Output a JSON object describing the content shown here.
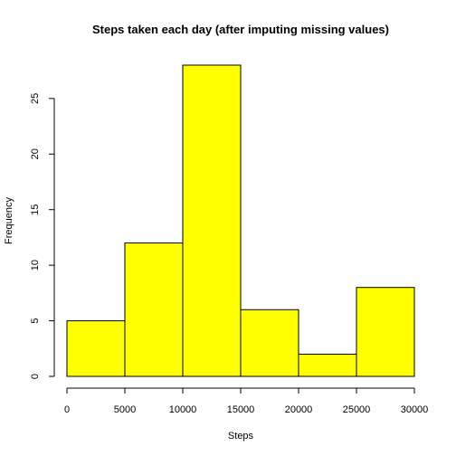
{
  "chart_data": {
    "type": "histogram",
    "title": "Steps taken each day (after imputing missing values)",
    "xlabel": "Steps",
    "ylabel": "Frequency",
    "bin_edges": [
      0,
      5000,
      10000,
      15000,
      20000,
      25000,
      30000
    ],
    "values": [
      5,
      12,
      28,
      6,
      2,
      8
    ],
    "xlim": [
      0,
      30000
    ],
    "ylim": [
      0,
      28
    ],
    "x_ticks": [
      0,
      5000,
      10000,
      15000,
      20000,
      25000,
      30000
    ],
    "y_ticks": [
      0,
      5,
      10,
      15,
      20,
      25
    ],
    "bar_color": "#ffff00",
    "edge_color": "#000000",
    "grid": false,
    "legend": "none"
  }
}
